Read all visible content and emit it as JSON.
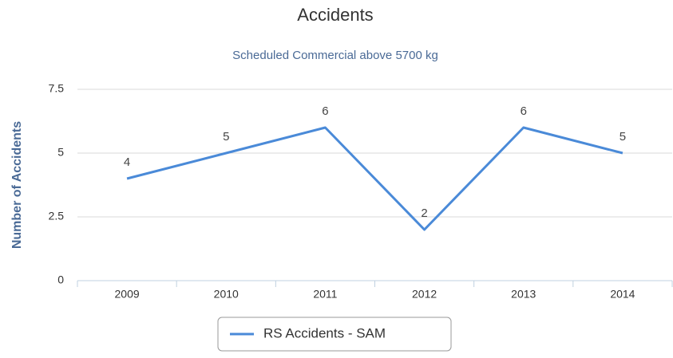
{
  "chart_data": {
    "type": "line",
    "title": "Accidents",
    "subtitle": "Scheduled Commercial above 5700 kg",
    "y_label": "Number of Accidents",
    "categories": [
      "2009",
      "2010",
      "2011",
      "2012",
      "2013",
      "2014"
    ],
    "series": [
      {
        "name": "RS Accidents - SAM",
        "color": "#4a8ad8",
        "values": [
          4,
          5,
          6,
          2,
          6,
          5
        ]
      }
    ],
    "ylim": [
      0,
      7.5
    ],
    "yticks": [
      0,
      2.5,
      5,
      7.5
    ],
    "grid": true,
    "legend": "bottom"
  }
}
